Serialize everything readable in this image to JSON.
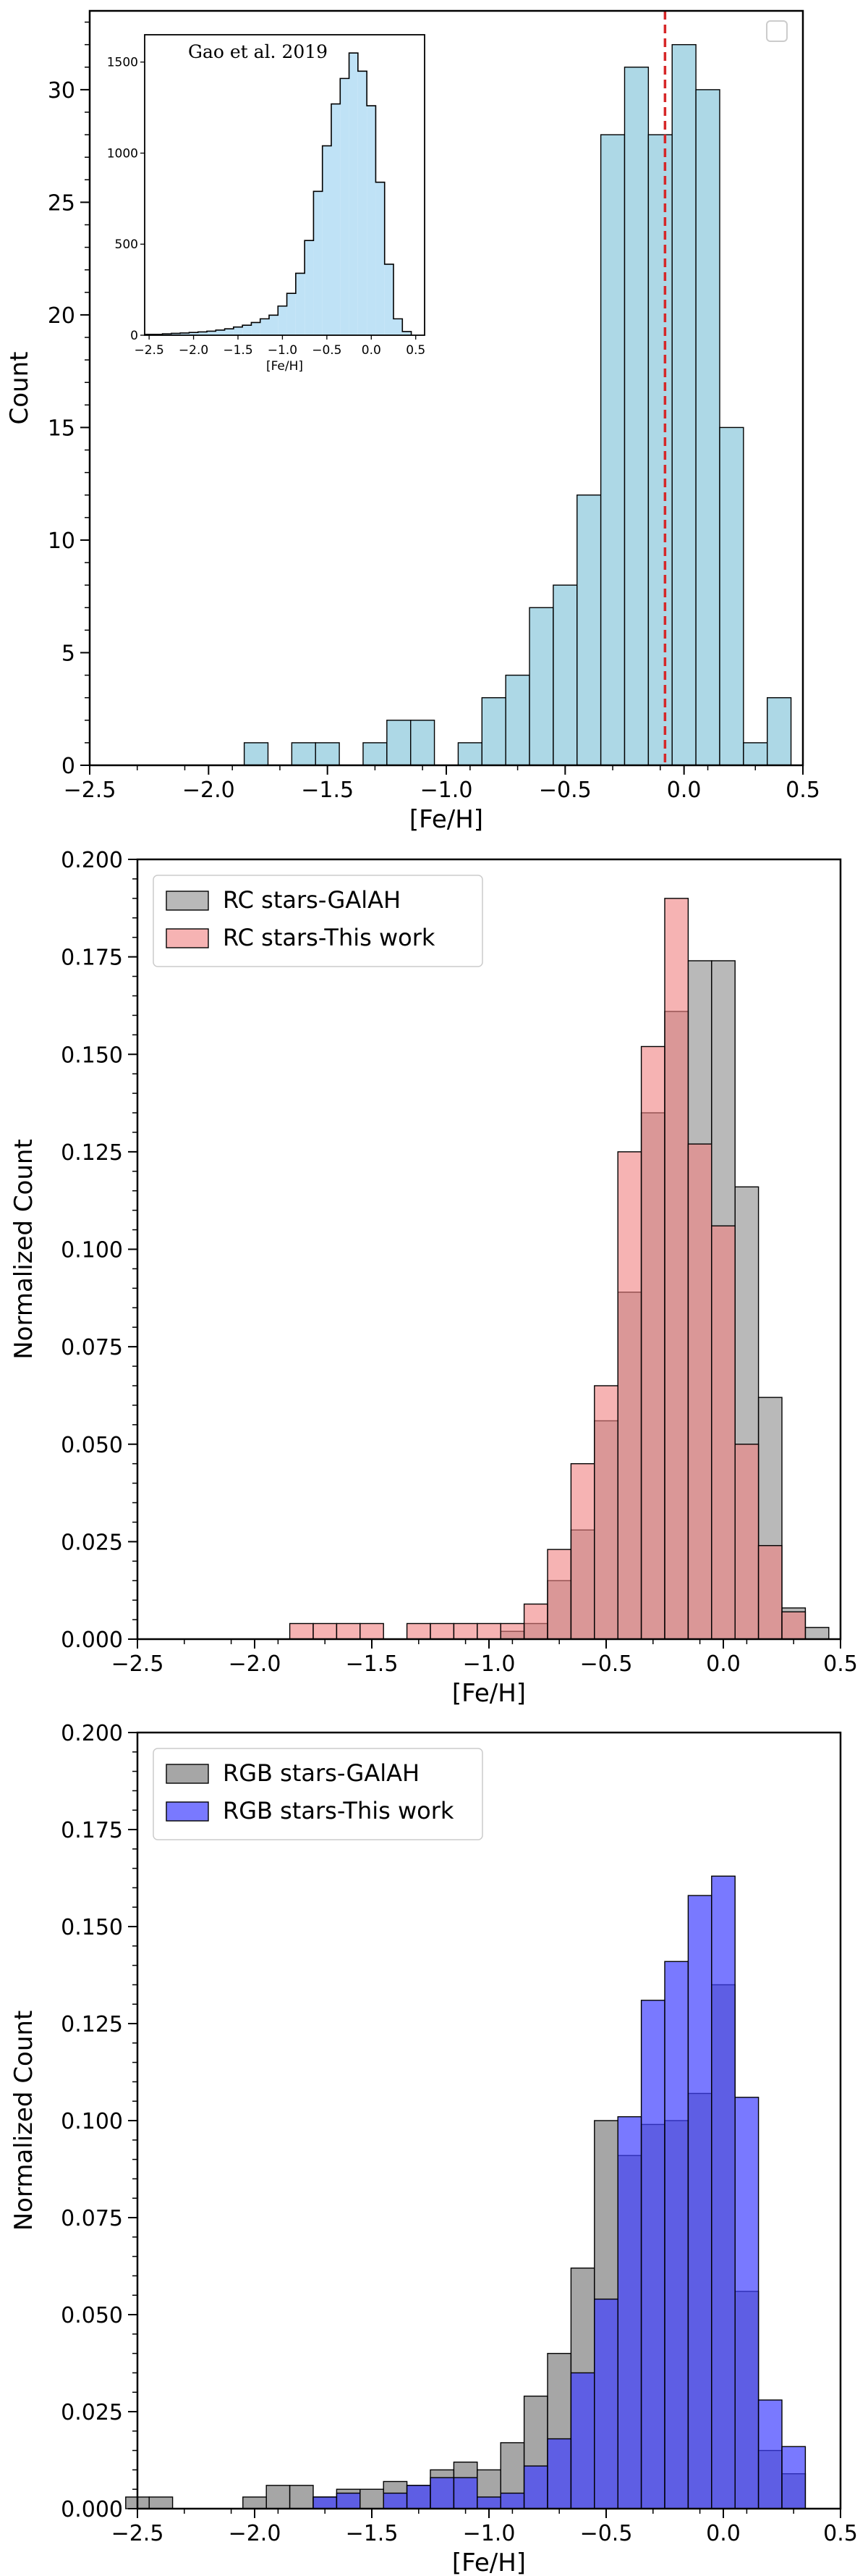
{
  "chart_data": [
    {
      "type": "bar",
      "xlabel": "[Fe/H]",
      "ylabel": "Count",
      "xlim": [
        -2.5,
        0.5
      ],
      "ylim": [
        0,
        33.5
      ],
      "xticks": [
        -2.5,
        -2.0,
        -1.5,
        -1.0,
        -0.5,
        0.0,
        0.5
      ],
      "xtick_labels": [
        "−2.5",
        "−2.0",
        "−1.5",
        "−1.0",
        "−0.5",
        "0.0",
        "0.5"
      ],
      "yticks": [
        0,
        5,
        10,
        15,
        20,
        25,
        30
      ],
      "ytick_labels": [
        "0",
        "5",
        "10",
        "15",
        "20",
        "25",
        "30"
      ],
      "bin_width": 0.1,
      "bars": [
        {
          "x": -1.8,
          "value": 1
        },
        {
          "x": -1.6,
          "value": 1
        },
        {
          "x": -1.5,
          "value": 1
        },
        {
          "x": -1.3,
          "value": 1
        },
        {
          "x": -1.2,
          "value": 2
        },
        {
          "x": -1.1,
          "value": 2
        },
        {
          "x": -0.9,
          "value": 1
        },
        {
          "x": -0.8,
          "value": 3
        },
        {
          "x": -0.7,
          "value": 4
        },
        {
          "x": -0.6,
          "value": 7
        },
        {
          "x": -0.5,
          "value": 8
        },
        {
          "x": -0.4,
          "value": 12
        },
        {
          "x": -0.3,
          "value": 28
        },
        {
          "x": -0.2,
          "value": 31
        },
        {
          "x": -0.1,
          "value": 28
        },
        {
          "x": 0.0,
          "value": 32
        },
        {
          "x": 0.1,
          "value": 30
        },
        {
          "x": 0.2,
          "value": 15
        },
        {
          "x": 0.3,
          "value": 1
        },
        {
          "x": 0.4,
          "value": 3
        }
      ],
      "vline": -0.08,
      "bar_color": "#add8e6",
      "vline_color": "#d62728",
      "inset": {
        "title": "Gao et al. 2019",
        "xlabel": "[Fe/H]",
        "xlim": [
          -2.55,
          0.6
        ],
        "ylim": [
          0,
          1650
        ],
        "xtick_labels": [
          "−2.5",
          "−2.0",
          "−1.5",
          "−1.0",
          "−0.5",
          "0.0",
          "0.5"
        ],
        "xticks": [
          -2.5,
          -2.0,
          -1.5,
          -1.0,
          -0.5,
          0.0,
          0.5
        ],
        "ytick_labels": [
          "0",
          "500",
          "1000",
          "1500"
        ],
        "yticks": [
          0,
          500,
          1000,
          1500
        ],
        "bin_width": 0.1,
        "bars": [
          {
            "x": -2.5,
            "value": 5
          },
          {
            "x": -2.4,
            "value": 5
          },
          {
            "x": -2.3,
            "value": 8
          },
          {
            "x": -2.2,
            "value": 10
          },
          {
            "x": -2.1,
            "value": 12
          },
          {
            "x": -2.0,
            "value": 15
          },
          {
            "x": -1.9,
            "value": 18
          },
          {
            "x": -1.8,
            "value": 22
          },
          {
            "x": -1.7,
            "value": 28
          },
          {
            "x": -1.6,
            "value": 35
          },
          {
            "x": -1.5,
            "value": 45
          },
          {
            "x": -1.4,
            "value": 55
          },
          {
            "x": -1.3,
            "value": 70
          },
          {
            "x": -1.2,
            "value": 90
          },
          {
            "x": -1.1,
            "value": 110
          },
          {
            "x": -1.0,
            "value": 160
          },
          {
            "x": -0.9,
            "value": 230
          },
          {
            "x": -0.8,
            "value": 340
          },
          {
            "x": -0.7,
            "value": 520
          },
          {
            "x": -0.6,
            "value": 790
          },
          {
            "x": -0.5,
            "value": 1040
          },
          {
            "x": -0.4,
            "value": 1270
          },
          {
            "x": -0.3,
            "value": 1410
          },
          {
            "x": -0.2,
            "value": 1550
          },
          {
            "x": -0.1,
            "value": 1450
          },
          {
            "x": 0.0,
            "value": 1260
          },
          {
            "x": 0.1,
            "value": 840
          },
          {
            "x": 0.2,
            "value": 390
          },
          {
            "x": 0.3,
            "value": 90
          },
          {
            "x": 0.4,
            "value": 20
          }
        ],
        "bar_color": "#bfe2f6"
      }
    },
    {
      "type": "bar",
      "xlabel": "[Fe/H]",
      "ylabel": "Normalized Count",
      "xlim": [
        -2.5,
        0.5
      ],
      "ylim": [
        0,
        0.2
      ],
      "xticks": [
        -2.5,
        -2.0,
        -1.5,
        -1.0,
        -0.5,
        0.0,
        0.5
      ],
      "xtick_labels": [
        "−2.5",
        "−2.0",
        "−1.5",
        "−1.0",
        "−0.5",
        "0.0",
        "0.5"
      ],
      "yticks": [
        0,
        0.025,
        0.05,
        0.075,
        0.1,
        0.125,
        0.15,
        0.175,
        0.2
      ],
      "ytick_labels": [
        "0.000",
        "0.025",
        "0.050",
        "0.075",
        "0.100",
        "0.125",
        "0.150",
        "0.175",
        "0.200"
      ],
      "bin_width": 0.1,
      "legend_position": "top-left",
      "series": [
        {
          "name": "RC stars-GAlAH",
          "color": "#808080",
          "opacity": 0.55,
          "bars": [
            {
              "x": -0.9,
              "value": 0.002
            },
            {
              "x": -0.8,
              "value": 0.004
            },
            {
              "x": -0.7,
              "value": 0.015
            },
            {
              "x": -0.6,
              "value": 0.028
            },
            {
              "x": -0.5,
              "value": 0.056
            },
            {
              "x": -0.4,
              "value": 0.089
            },
            {
              "x": -0.3,
              "value": 0.135
            },
            {
              "x": -0.2,
              "value": 0.161
            },
            {
              "x": -0.1,
              "value": 0.174
            },
            {
              "x": 0.0,
              "value": 0.174
            },
            {
              "x": 0.1,
              "value": 0.116
            },
            {
              "x": 0.2,
              "value": 0.062
            },
            {
              "x": 0.3,
              "value": 0.008
            },
            {
              "x": 0.4,
              "value": 0.003
            }
          ]
        },
        {
          "name": "RC stars-This work",
          "color": "#f08080",
          "opacity": 0.6,
          "bars": [
            {
              "x": -1.8,
              "value": 0.004
            },
            {
              "x": -1.7,
              "value": 0.004
            },
            {
              "x": -1.6,
              "value": 0.004
            },
            {
              "x": -1.5,
              "value": 0.004
            },
            {
              "x": -1.3,
              "value": 0.004
            },
            {
              "x": -1.2,
              "value": 0.004
            },
            {
              "x": -1.1,
              "value": 0.004
            },
            {
              "x": -1.0,
              "value": 0.004
            },
            {
              "x": -0.9,
              "value": 0.004
            },
            {
              "x": -0.8,
              "value": 0.009
            },
            {
              "x": -0.7,
              "value": 0.023
            },
            {
              "x": -0.6,
              "value": 0.045
            },
            {
              "x": -0.5,
              "value": 0.065
            },
            {
              "x": -0.4,
              "value": 0.125
            },
            {
              "x": -0.3,
              "value": 0.152
            },
            {
              "x": -0.2,
              "value": 0.19
            },
            {
              "x": -0.1,
              "value": 0.127
            },
            {
              "x": 0.0,
              "value": 0.106
            },
            {
              "x": 0.1,
              "value": 0.05
            },
            {
              "x": 0.2,
              "value": 0.024
            },
            {
              "x": 0.3,
              "value": 0.007
            }
          ]
        }
      ]
    },
    {
      "type": "bar",
      "xlabel": "[Fe/H]",
      "ylabel": "Normalized Count",
      "xlim": [
        -2.5,
        0.5
      ],
      "ylim": [
        0,
        0.2
      ],
      "xticks": [
        -2.5,
        -2.0,
        -1.5,
        -1.0,
        -0.5,
        0.0,
        0.5
      ],
      "xtick_labels": [
        "−2.5",
        "−2.0",
        "−1.5",
        "−1.0",
        "−0.5",
        "0.0",
        "0.5"
      ],
      "yticks": [
        0,
        0.025,
        0.05,
        0.075,
        0.1,
        0.125,
        0.15,
        0.175,
        0.2
      ],
      "ytick_labels": [
        "0.000",
        "0.025",
        "0.050",
        "0.075",
        "0.100",
        "0.125",
        "0.150",
        "0.175",
        "0.200"
      ],
      "bin_width": 0.1,
      "legend_position": "top-left",
      "series": [
        {
          "name": "RGB stars-GAlAH",
          "color": "#808080",
          "opacity": 0.7,
          "bars": [
            {
              "x": -2.5,
              "value": 0.003
            },
            {
              "x": -2.4,
              "value": 0.003
            },
            {
              "x": -2.0,
              "value": 0.003
            },
            {
              "x": -1.9,
              "value": 0.006
            },
            {
              "x": -1.8,
              "value": 0.006
            },
            {
              "x": -1.7,
              "value": 0.003
            },
            {
              "x": -1.6,
              "value": 0.005
            },
            {
              "x": -1.5,
              "value": 0.005
            },
            {
              "x": -1.4,
              "value": 0.007
            },
            {
              "x": -1.3,
              "value": 0.006
            },
            {
              "x": -1.2,
              "value": 0.01
            },
            {
              "x": -1.1,
              "value": 0.012
            },
            {
              "x": -1.0,
              "value": 0.01
            },
            {
              "x": -0.9,
              "value": 0.017
            },
            {
              "x": -0.8,
              "value": 0.029
            },
            {
              "x": -0.7,
              "value": 0.04
            },
            {
              "x": -0.6,
              "value": 0.062
            },
            {
              "x": -0.5,
              "value": 0.1
            },
            {
              "x": -0.4,
              "value": 0.091
            },
            {
              "x": -0.3,
              "value": 0.099
            },
            {
              "x": -0.2,
              "value": 0.1
            },
            {
              "x": -0.1,
              "value": 0.107
            },
            {
              "x": 0.0,
              "value": 0.135
            },
            {
              "x": 0.1,
              "value": 0.056
            },
            {
              "x": 0.2,
              "value": 0.015
            },
            {
              "x": 0.3,
              "value": 0.009
            }
          ]
        },
        {
          "name": "RGB stars-This work",
          "color": "#4040ff",
          "opacity": 0.7,
          "bars": [
            {
              "x": -1.7,
              "value": 0.003
            },
            {
              "x": -1.6,
              "value": 0.004
            },
            {
              "x": -1.4,
              "value": 0.004
            },
            {
              "x": -1.3,
              "value": 0.006
            },
            {
              "x": -1.2,
              "value": 0.008
            },
            {
              "x": -1.1,
              "value": 0.008
            },
            {
              "x": -1.0,
              "value": 0.003
            },
            {
              "x": -0.9,
              "value": 0.004
            },
            {
              "x": -0.8,
              "value": 0.011
            },
            {
              "x": -0.7,
              "value": 0.018
            },
            {
              "x": -0.6,
              "value": 0.035
            },
            {
              "x": -0.5,
              "value": 0.054
            },
            {
              "x": -0.4,
              "value": 0.101
            },
            {
              "x": -0.3,
              "value": 0.131
            },
            {
              "x": -0.2,
              "value": 0.141
            },
            {
              "x": -0.1,
              "value": 0.158
            },
            {
              "x": 0.0,
              "value": 0.163
            },
            {
              "x": 0.1,
              "value": 0.106
            },
            {
              "x": 0.2,
              "value": 0.028
            },
            {
              "x": 0.3,
              "value": 0.016
            }
          ]
        }
      ]
    }
  ]
}
